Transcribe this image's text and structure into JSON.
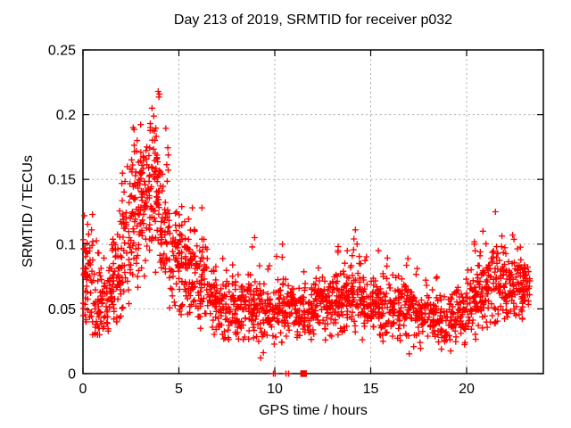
{
  "chart_data": {
    "type": "scatter",
    "title": "Day 213 of 2019, SRMTID for receiver p032",
    "xlabel": "GPS time / hours",
    "ylabel": "SRMTID / TECUs",
    "xlim": [
      0,
      24
    ],
    "ylim": [
      0,
      0.25
    ],
    "x_ticks": [
      0,
      5,
      10,
      15,
      20
    ],
    "x_tick_labels": [
      "0",
      "5",
      "10",
      "15",
      "20"
    ],
    "y_ticks": [
      0,
      0.05,
      0.1,
      0.15,
      0.2,
      0.25
    ],
    "y_tick_labels": [
      "0",
      "0.05",
      "0.1",
      "0.15",
      "0.2",
      "0.25"
    ],
    "grid": true,
    "grid_color": "#a6a6a6",
    "legend": "none",
    "marker": "plus",
    "marker_color": "#ff0000",
    "marker_size_px": 7,
    "seed": 213,
    "summary": "Dense 30-second SRMTID scatter for one day: baseline ~0.05 TECUs, broad enhancement hours 2-5 peaking ~0.22 near hour 3.9, quiet midday ~0.03-0.08, mild rise after hour 20, data ends ~hour 23.3; a few zero-valued samples near hours 10-11.5.",
    "density_bins": {
      "columns": [
        "hour_start",
        "hour_end",
        "count",
        "y_min",
        "y_max",
        "y_center",
        "y_spread"
      ],
      "rows": [
        [
          0.0,
          0.5,
          60,
          0.04,
          0.125,
          0.075,
          0.03
        ],
        [
          0.5,
          1.0,
          45,
          0.03,
          0.11,
          0.06,
          0.025
        ],
        [
          1.0,
          1.5,
          40,
          0.028,
          0.1,
          0.055,
          0.022
        ],
        [
          1.5,
          2.0,
          55,
          0.04,
          0.13,
          0.07,
          0.03
        ],
        [
          2.0,
          2.5,
          55,
          0.05,
          0.16,
          0.095,
          0.035
        ],
        [
          2.5,
          3.0,
          60,
          0.06,
          0.19,
          0.125,
          0.035
        ],
        [
          3.0,
          3.5,
          65,
          0.07,
          0.2,
          0.14,
          0.035
        ],
        [
          3.5,
          4.0,
          65,
          0.075,
          0.218,
          0.145,
          0.038
        ],
        [
          4.0,
          4.5,
          55,
          0.06,
          0.19,
          0.115,
          0.035
        ],
        [
          4.5,
          5.0,
          45,
          0.05,
          0.135,
          0.09,
          0.025
        ],
        [
          5.0,
          5.5,
          50,
          0.045,
          0.13,
          0.085,
          0.025
        ],
        [
          5.5,
          6.0,
          50,
          0.04,
          0.13,
          0.08,
          0.025
        ],
        [
          6.0,
          6.5,
          45,
          0.035,
          0.128,
          0.07,
          0.025
        ],
        [
          6.5,
          7.0,
          45,
          0.03,
          0.1,
          0.058,
          0.02
        ],
        [
          7.0,
          7.5,
          42,
          0.025,
          0.095,
          0.052,
          0.018
        ],
        [
          7.5,
          8.0,
          40,
          0.022,
          0.085,
          0.048,
          0.016
        ],
        [
          8.0,
          8.5,
          40,
          0.025,
          0.09,
          0.05,
          0.016
        ],
        [
          8.5,
          9.0,
          42,
          0.02,
          0.105,
          0.052,
          0.018
        ],
        [
          9.0,
          9.5,
          40,
          0.012,
          0.09,
          0.048,
          0.018
        ],
        [
          9.5,
          10.0,
          38,
          0.02,
          0.085,
          0.047,
          0.015
        ],
        [
          10.0,
          10.5,
          40,
          0.02,
          0.1,
          0.05,
          0.016
        ],
        [
          10.5,
          11.0,
          40,
          0.025,
          0.085,
          0.049,
          0.015
        ],
        [
          11.0,
          11.5,
          38,
          0.02,
          0.08,
          0.047,
          0.014
        ],
        [
          11.5,
          12.0,
          40,
          0.025,
          0.085,
          0.05,
          0.015
        ],
        [
          12.0,
          12.5,
          42,
          0.03,
          0.09,
          0.054,
          0.015
        ],
        [
          12.5,
          13.0,
          42,
          0.025,
          0.095,
          0.054,
          0.016
        ],
        [
          13.0,
          13.5,
          44,
          0.03,
          0.1,
          0.058,
          0.017
        ],
        [
          13.5,
          14.0,
          44,
          0.03,
          0.105,
          0.058,
          0.018
        ],
        [
          14.0,
          14.5,
          44,
          0.03,
          0.111,
          0.058,
          0.018
        ],
        [
          14.5,
          15.0,
          42,
          0.025,
          0.095,
          0.053,
          0.016
        ],
        [
          15.0,
          15.5,
          42,
          0.03,
          0.097,
          0.053,
          0.016
        ],
        [
          15.5,
          16.0,
          40,
          0.025,
          0.09,
          0.05,
          0.015
        ],
        [
          16.0,
          16.5,
          40,
          0.02,
          0.085,
          0.049,
          0.015
        ],
        [
          16.5,
          17.0,
          42,
          0.025,
          0.095,
          0.053,
          0.016
        ],
        [
          17.0,
          17.5,
          40,
          0.013,
          0.09,
          0.048,
          0.016
        ],
        [
          17.5,
          18.0,
          38,
          0.015,
          0.08,
          0.045,
          0.015
        ],
        [
          18.0,
          18.5,
          38,
          0.02,
          0.075,
          0.044,
          0.014
        ],
        [
          18.5,
          19.0,
          36,
          0.012,
          0.07,
          0.04,
          0.014
        ],
        [
          19.0,
          19.5,
          38,
          0.015,
          0.08,
          0.044,
          0.015
        ],
        [
          19.5,
          20.0,
          40,
          0.02,
          0.09,
          0.049,
          0.016
        ],
        [
          20.0,
          20.5,
          44,
          0.025,
          0.105,
          0.055,
          0.018
        ],
        [
          20.5,
          21.0,
          46,
          0.03,
          0.112,
          0.06,
          0.02
        ],
        [
          21.0,
          21.5,
          48,
          0.035,
          0.125,
          0.068,
          0.022
        ],
        [
          21.5,
          22.0,
          48,
          0.04,
          0.11,
          0.068,
          0.02
        ],
        [
          22.0,
          22.5,
          48,
          0.04,
          0.107,
          0.068,
          0.018
        ],
        [
          22.5,
          23.0,
          50,
          0.04,
          0.1,
          0.068,
          0.016
        ],
        [
          23.0,
          23.3,
          25,
          0.045,
          0.095,
          0.068,
          0.014
        ]
      ]
    },
    "notable_points": [
      [
        0.07,
        0.122
      ],
      [
        2.62,
        0.19
      ],
      [
        3.6,
        0.205
      ],
      [
        3.92,
        0.218
      ],
      [
        5.15,
        0.129
      ],
      [
        5.7,
        0.128
      ],
      [
        6.2,
        0.128
      ],
      [
        8.95,
        0.105
      ],
      [
        10.4,
        0.1
      ],
      [
        13.3,
        0.095
      ],
      [
        14.2,
        0.111
      ],
      [
        15.4,
        0.095
      ],
      [
        20.4,
        0.1
      ],
      [
        20.85,
        0.11
      ],
      [
        21.5,
        0.125
      ],
      [
        22.4,
        0.107
      ]
    ],
    "zero_markers": {
      "plus_hours": [
        9.93,
        10.02,
        10.58,
        10.72
      ],
      "square": {
        "hour": 11.5,
        "value": 0
      }
    }
  }
}
